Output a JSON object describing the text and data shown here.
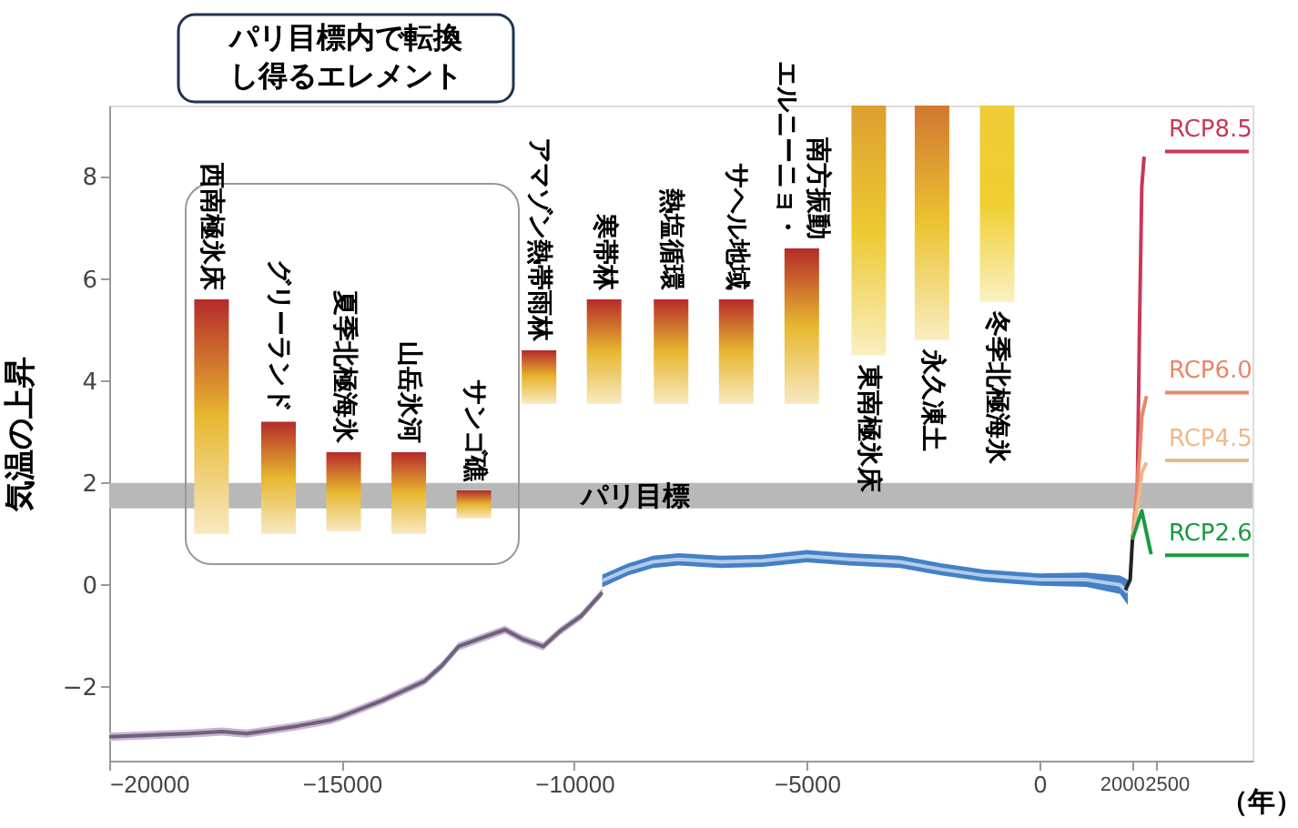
{
  "chart_data": {
    "type": "line",
    "ylabel": "気温の上昇",
    "xlabel": "（年）",
    "xlim": [
      -20000,
      4580
    ],
    "ylim": [
      -3.45,
      9.4
    ],
    "xticks": [
      -20000,
      -15000,
      -10000,
      -5000,
      0,
      2000,
      2500
    ],
    "yticks": [
      -2,
      0,
      2,
      4,
      6,
      8
    ],
    "series": [
      {
        "type": "bar",
        "x": [
          -17800,
          -16360,
          -14960,
          -13560,
          -12160,
          -10760,
          -9360,
          -7920,
          -6520,
          -5110,
          -3670,
          -2310,
          -910
        ],
        "base": [
          1.0,
          1.0,
          1.05,
          1.0,
          1.3,
          3.55,
          3.55,
          3.55,
          3.55,
          3.55,
          4.5,
          4.8,
          5.55
        ],
        "values": [
          4.6,
          2.2,
          1.55,
          1.6,
          0.55,
          1.05,
          2.05,
          2.05,
          2.05,
          3.05,
          4.9,
          4.6,
          3.85
        ],
        "colors": [
          "#b52a2a",
          "#b52a2a",
          "#b52a2a",
          "#b52a2a",
          "#b52a2a",
          "#b52a2a",
          "#b52a2a",
          "#b52a2a",
          "#b52a2a",
          "#b52a2a",
          "#dca030",
          "#d07830",
          "#f0cc38"
        ]
      },
      {
        "color": "#6f6277",
        "x": [
          -20000,
          -18300,
          -17580,
          -17040,
          -15950,
          -15230,
          -15000,
          -14130,
          -13220,
          -12850,
          -12490,
          -11950,
          -11490,
          -11130,
          -10670,
          -10310,
          -9850,
          -9400
        ],
        "values": [
          -2.98,
          -2.92,
          -2.88,
          -2.92,
          -2.77,
          -2.65,
          -2.58,
          -2.27,
          -1.89,
          -1.59,
          -1.21,
          -1.03,
          -0.88,
          -1.06,
          -1.21,
          -0.91,
          -0.61,
          -0.15
        ],
        "lower": [
          -3.06,
          -3.0,
          -2.96,
          -3.0,
          -2.85,
          -2.73,
          -2.66,
          -2.35,
          -1.97,
          -1.67,
          -1.29,
          -1.11,
          -0.96,
          -1.14,
          -1.29,
          -0.99,
          -0.69,
          -0.23
        ],
        "upper": [
          -2.9,
          -2.84,
          -2.8,
          -2.84,
          -2.69,
          -2.57,
          -2.5,
          -2.19,
          -1.81,
          -1.51,
          -1.13,
          -0.95,
          -0.8,
          -0.98,
          -1.13,
          -0.83,
          -0.53,
          -0.07
        ]
      },
      {
        "color": "#b4cce8",
        "x": [
          -9400,
          -8850,
          -8310,
          -7760,
          -6850,
          -5950,
          -5000,
          -4090,
          -3000,
          -2090,
          -1180,
          0,
          1000,
          1730,
          1900
        ],
        "values": [
          0.08,
          0.3,
          0.45,
          0.5,
          0.45,
          0.47,
          0.56,
          0.5,
          0.45,
          0.3,
          0.18,
          0.1,
          0.1,
          0.0,
          -0.15
        ],
        "lower": [
          -0.05,
          0.18,
          0.33,
          0.38,
          0.33,
          0.35,
          0.44,
          0.38,
          0.33,
          0.18,
          0.06,
          -0.02,
          -0.04,
          -0.18,
          -0.4
        ],
        "upper": [
          0.2,
          0.42,
          0.57,
          0.62,
          0.57,
          0.59,
          0.68,
          0.62,
          0.57,
          0.42,
          0.3,
          0.22,
          0.24,
          0.18,
          0.1
        ]
      },
      {
        "color": "#222222",
        "x": [
          1850,
          1950,
          2000
        ],
        "values": [
          -0.1,
          0.1,
          0.9
        ]
      },
      {
        "name": "RCP8.5",
        "color": "#c8385a",
        "x": [
          2000,
          2100,
          2150,
          2200,
          2250,
          2500,
          2700,
          4500
        ],
        "values": [
          0.9,
          1.6,
          5.0,
          7.8,
          8.4,
          null,
          8.5,
          8.5
        ]
      },
      {
        "name": "RCP6.0",
        "color": "#e8876a",
        "x": [
          2000,
          2150,
          2200,
          2300,
          2500,
          2700,
          4500
        ],
        "values": [
          0.9,
          2.5,
          3.3,
          3.7,
          null,
          3.77,
          3.77
        ]
      },
      {
        "name": "RCP4.5",
        "color": "#f0b888",
        "x": [
          2000,
          2150,
          2200,
          2300,
          2500,
          2700,
          4500
        ],
        "values": [
          0.9,
          1.8,
          2.2,
          2.4,
          null,
          2.44,
          2.44
        ]
      },
      {
        "name": "RCP2.6",
        "color": "#1a9a40",
        "x": [
          2000,
          2200,
          2400,
          2500,
          2700,
          4500
        ],
        "values": [
          0.9,
          1.45,
          0.6,
          null,
          0.58,
          0.58
        ]
      }
    ],
    "bands": [
      {
        "axis": "y",
        "from": 1.5,
        "to": 2.0,
        "label": "パリ目標",
        "color": "#b8b8b8"
      }
    ],
    "annotations": [
      "パリ目標内で転換し得るエレメント",
      {
        "text": "西南極氷床",
        "x": -17800,
        "y": 5.6
      },
      {
        "text": "グリーランド",
        "x": -16360,
        "y": 3.2
      },
      {
        "text": "夏季北極海氷",
        "x": -14960,
        "y": 2.6
      },
      {
        "text": "山岳氷河",
        "x": -13560,
        "y": 2.6
      },
      {
        "text": "サンゴ礁",
        "x": -12160,
        "y": 1.85
      },
      {
        "text": "アマゾン熱帯雨林",
        "x": -10760,
        "y": 4.6
      },
      {
        "text": "寒帯林",
        "x": -9360,
        "y": 5.6
      },
      {
        "text": "熱塩循環",
        "x": -7920,
        "y": 5.6
      },
      {
        "text": "サヘル地域",
        "x": -6520,
        "y": 5.6
      },
      {
        "text": "エルニーニョ・南方振動",
        "x": -5110,
        "y": 6.6
      },
      {
        "text": "東南極氷床",
        "x": -3670,
        "y": 4.5
      },
      {
        "text": "永久凍土",
        "x": -2310,
        "y": 4.8
      },
      {
        "text": "冬季北極海氷",
        "x": -910,
        "y": 5.55
      }
    ]
  }
}
